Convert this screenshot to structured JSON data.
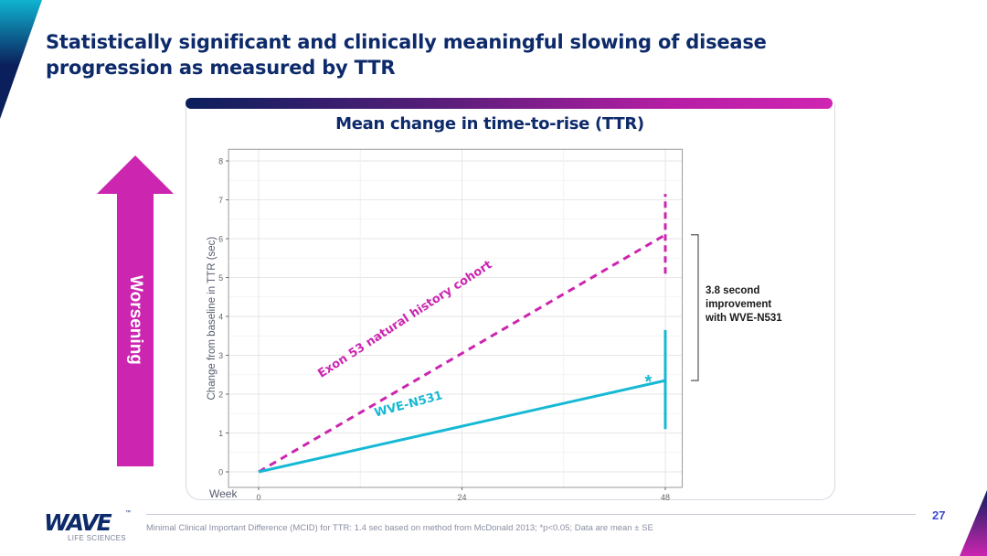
{
  "slide": {
    "title": "Statistically significant and clinically meaningful slowing of disease progression as measured by TTR",
    "page_number": "27",
    "footnote": "Minimal Clinical Important Difference (MCID) for TTR: 1.4 sec based on method from McDonald 2013; *p<0.05; Data are mean ± SE",
    "logo": {
      "word": "WAVE",
      "trademark": "™",
      "subtitle": "LIFE SCIENCES"
    },
    "arrow_label": "Worsening",
    "bracket_label_lines": [
      "3.8 second",
      "improvement",
      "with WVE-N531"
    ],
    "colors": {
      "navy": "#0d2a6b",
      "magenta": "#cc25b0",
      "cyan": "#16b9d4",
      "page_number": "#3d4ad0"
    }
  },
  "chart_data": {
    "type": "line",
    "title": "Mean change in time-to-rise (TTR)",
    "xlabel": "Week",
    "ylabel": "Change from baseline in TTR (sec)",
    "x_ticks": [
      0,
      24,
      48
    ],
    "y_ticks": [
      0,
      1,
      2,
      3,
      4,
      5,
      6,
      7,
      8
    ],
    "xlim": [
      -1.5,
      50
    ],
    "ylim": [
      -0.4,
      8.3
    ],
    "grid": true,
    "series": [
      {
        "name": "Exon 53 natural history cohort",
        "style": "dashed",
        "color": "#cc25b0",
        "x": [
          0,
          48
        ],
        "y": [
          0,
          6.1
        ],
        "error_bar": {
          "x": 48,
          "low": 5.1,
          "high": 7.15
        }
      },
      {
        "name": "WVE-N531",
        "style": "solid",
        "color": "#16b9d4",
        "x": [
          0,
          48
        ],
        "y": [
          0,
          2.35
        ],
        "error_bar": {
          "x": 48,
          "low": 1.1,
          "high": 3.65
        },
        "annotation": "*"
      }
    ],
    "annotations": [
      "3.8 second improvement with WVE-N531",
      "*"
    ]
  }
}
